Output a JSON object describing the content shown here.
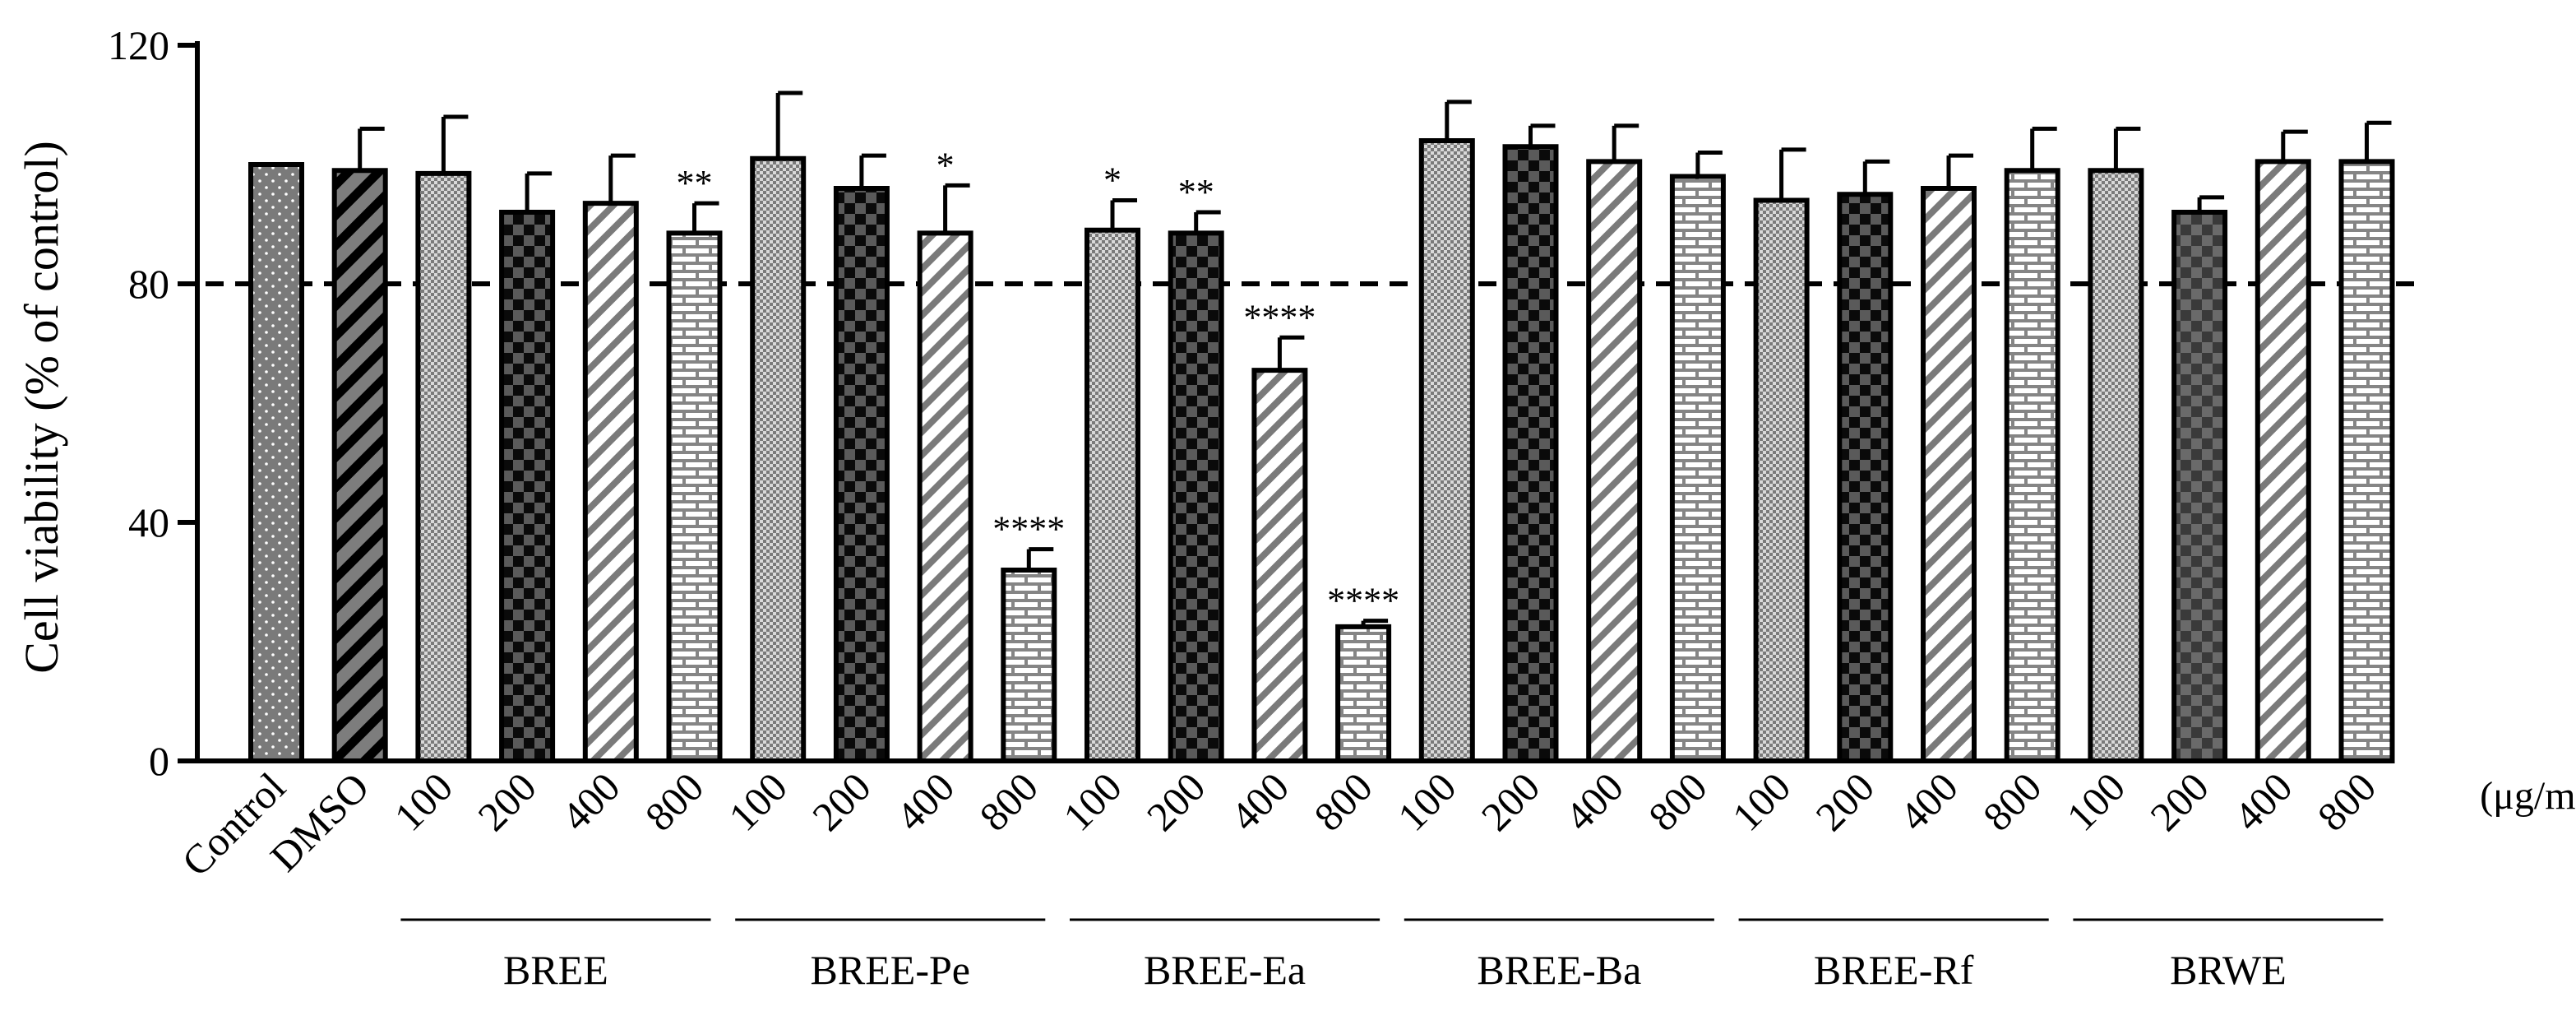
{
  "chart_data": {
    "type": "bar",
    "title": "",
    "ylabel": "Cell viability (% of control)",
    "xlabel": "",
    "unit_label": "(μg/mL)",
    "ylim": [
      0,
      120
    ],
    "yticks": [
      0,
      40,
      80,
      120
    ],
    "reference_line": 80,
    "bars": [
      {
        "label": "Control",
        "value": 100,
        "error": 0,
        "sig": "",
        "pattern": "pat-dots",
        "group": null
      },
      {
        "label": "DMSO",
        "value": 99,
        "error": 7,
        "sig": "",
        "pattern": "pat-diag-dark",
        "group": null
      },
      {
        "label": "100",
        "value": 98.5,
        "error": 9.5,
        "sig": "",
        "pattern": "pat-fine",
        "group": "BREE"
      },
      {
        "label": "200",
        "value": 92,
        "error": 6.5,
        "sig": "",
        "pattern": "pat-check",
        "group": "BREE"
      },
      {
        "label": "400",
        "value": 93.5,
        "error": 8,
        "sig": "",
        "pattern": "pat-diag",
        "group": "BREE"
      },
      {
        "label": "800",
        "value": 88.5,
        "error": 5,
        "sig": "**",
        "pattern": "pat-brick",
        "group": "BREE"
      },
      {
        "label": "100",
        "value": 101,
        "error": 11,
        "sig": "",
        "pattern": "pat-fine",
        "group": "BREE-Pe"
      },
      {
        "label": "200",
        "value": 96,
        "error": 5.5,
        "sig": "",
        "pattern": "pat-check",
        "group": "BREE-Pe"
      },
      {
        "label": "400",
        "value": 88.5,
        "error": 8,
        "sig": "*",
        "pattern": "pat-diag",
        "group": "BREE-Pe"
      },
      {
        "label": "800",
        "value": 32,
        "error": 3.5,
        "sig": "****",
        "pattern": "pat-brick",
        "group": "BREE-Pe"
      },
      {
        "label": "100",
        "value": 89,
        "error": 5,
        "sig": "*",
        "pattern": "pat-fine",
        "group": "BREE-Ea"
      },
      {
        "label": "200",
        "value": 88.5,
        "error": 3.5,
        "sig": "**",
        "pattern": "pat-check",
        "group": "BREE-Ea"
      },
      {
        "label": "400",
        "value": 65.5,
        "error": 5.5,
        "sig": "****",
        "pattern": "pat-diag",
        "group": "BREE-Ea"
      },
      {
        "label": "800",
        "value": 22.5,
        "error": 1,
        "sig": "****",
        "pattern": "pat-brick",
        "group": "BREE-Ea"
      },
      {
        "label": "100",
        "value": 104,
        "error": 6.5,
        "sig": "",
        "pattern": "pat-fine",
        "group": "BREE-Ba"
      },
      {
        "label": "200",
        "value": 103,
        "error": 3.5,
        "sig": "",
        "pattern": "pat-check",
        "group": "BREE-Ba"
      },
      {
        "label": "400",
        "value": 100.5,
        "error": 6,
        "sig": "",
        "pattern": "pat-diag",
        "group": "BREE-Ba"
      },
      {
        "label": "800",
        "value": 98,
        "error": 4,
        "sig": "",
        "pattern": "pat-brick",
        "group": "BREE-Ba"
      },
      {
        "label": "100",
        "value": 94,
        "error": 8.5,
        "sig": "",
        "pattern": "pat-fine",
        "group": "BREE-Rf"
      },
      {
        "label": "200",
        "value": 95,
        "error": 5.5,
        "sig": "",
        "pattern": "pat-check",
        "group": "BREE-Rf"
      },
      {
        "label": "400",
        "value": 96,
        "error": 5.5,
        "sig": "",
        "pattern": "pat-diag",
        "group": "BREE-Rf"
      },
      {
        "label": "800",
        "value": 99,
        "error": 7,
        "sig": "",
        "pattern": "pat-brick",
        "group": "BREE-Rf"
      },
      {
        "label": "100",
        "value": 99,
        "error": 7,
        "sig": "",
        "pattern": "pat-fine",
        "group": "BRWE"
      },
      {
        "label": "200",
        "value": 92,
        "error": 2.5,
        "sig": "",
        "pattern": "pat-check-dark",
        "group": "BRWE"
      },
      {
        "label": "400",
        "value": 100.5,
        "error": 5,
        "sig": "",
        "pattern": "pat-diag",
        "group": "BRWE"
      },
      {
        "label": "800",
        "value": 100.5,
        "error": 6.5,
        "sig": "",
        "pattern": "pat-brick",
        "group": "BRWE"
      }
    ],
    "groups": [
      "BREE",
      "BREE-Pe",
      "BREE-Ea",
      "BREE-Ba",
      "BREE-Rf",
      "BRWE"
    ]
  }
}
